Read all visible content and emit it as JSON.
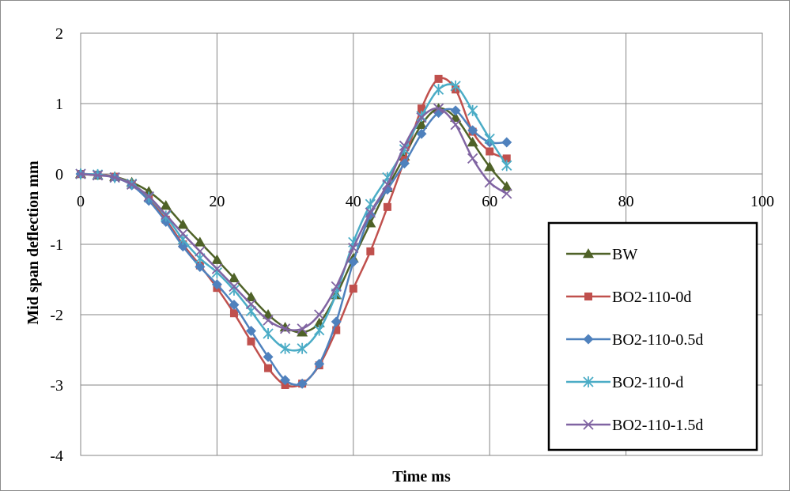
{
  "chart_data": {
    "type": "line",
    "title": "",
    "xlabel": "Time ms",
    "ylabel": "Mid span deflection mm",
    "xlim": [
      0,
      100
    ],
    "ylim": [
      -4,
      2
    ],
    "xticks": [
      0,
      20,
      40,
      60,
      80,
      100
    ],
    "yticks": [
      -4,
      -3,
      -2,
      -1,
      0,
      1,
      2
    ],
    "grid": true,
    "legend_position": "bottom-right",
    "series": [
      {
        "name": "BW",
        "color": "#4f6228",
        "marker": "triangle",
        "x": [
          0,
          2.5,
          5,
          7.5,
          10,
          12.5,
          15,
          17.5,
          20,
          22.5,
          25,
          27.5,
          30,
          32.5,
          35,
          37.5,
          40,
          42.5,
          45,
          47.5,
          50,
          52.5,
          55,
          57.5,
          60,
          62.5
        ],
        "y": [
          0,
          -0.02,
          -0.04,
          -0.12,
          -0.25,
          -0.45,
          -0.72,
          -0.97,
          -1.22,
          -1.48,
          -1.75,
          -2.0,
          -2.18,
          -2.25,
          -2.12,
          -1.72,
          -1.2,
          -0.7,
          -0.2,
          0.25,
          0.7,
          0.93,
          0.8,
          0.45,
          0.1,
          -0.18
        ]
      },
      {
        "name": "BO2-110-0d",
        "color": "#c0504d",
        "marker": "square",
        "x": [
          0,
          2.5,
          5,
          7.5,
          10,
          12.5,
          15,
          17.5,
          20,
          22.5,
          25,
          27.5,
          30,
          32.5,
          35,
          37.5,
          40,
          42.5,
          45,
          47.5,
          50,
          52.5,
          55,
          57.5,
          60,
          62.5
        ],
        "y": [
          0,
          -0.01,
          -0.04,
          -0.15,
          -0.35,
          -0.65,
          -1.0,
          -1.3,
          -1.62,
          -1.98,
          -2.38,
          -2.76,
          -3.0,
          -2.98,
          -2.72,
          -2.22,
          -1.63,
          -1.1,
          -0.47,
          0.2,
          0.93,
          1.35,
          1.2,
          0.6,
          0.32,
          0.22
        ]
      },
      {
        "name": "BO2-110-0.5d",
        "color": "#4f81bd",
        "marker": "diamond",
        "x": [
          0,
          2.5,
          5,
          7.5,
          10,
          12.5,
          15,
          17.5,
          20,
          22.5,
          25,
          27.5,
          30,
          32.5,
          35,
          37.5,
          40,
          42.5,
          45,
          47.5,
          50,
          52.5,
          55,
          57.5,
          60,
          62.5
        ],
        "y": [
          0,
          -0.01,
          -0.05,
          -0.16,
          -0.38,
          -0.68,
          -1.03,
          -1.32,
          -1.57,
          -1.86,
          -2.23,
          -2.6,
          -2.93,
          -2.98,
          -2.7,
          -2.1,
          -1.25,
          -0.58,
          -0.22,
          0.15,
          0.57,
          0.87,
          0.9,
          0.62,
          0.45,
          0.45
        ]
      },
      {
        "name": "BO2-110-d",
        "color": "#4bacc6",
        "marker": "asterisk",
        "x": [
          0,
          2.5,
          5,
          7.5,
          10,
          12.5,
          15,
          17.5,
          20,
          22.5,
          25,
          27.5,
          30,
          32.5,
          35,
          37.5,
          40,
          42.5,
          45,
          47.5,
          50,
          52.5,
          55,
          57.5,
          60,
          62.5
        ],
        "y": [
          0,
          -0.01,
          -0.05,
          -0.14,
          -0.33,
          -0.6,
          -0.93,
          -1.2,
          -1.4,
          -1.65,
          -1.95,
          -2.27,
          -2.48,
          -2.48,
          -2.22,
          -1.7,
          -0.97,
          -0.43,
          -0.05,
          0.35,
          0.82,
          1.2,
          1.25,
          0.9,
          0.5,
          0.12
        ]
      },
      {
        "name": "BO2-110-1.5d",
        "color": "#8064a2",
        "marker": "x",
        "x": [
          0,
          2.5,
          5,
          7.5,
          10,
          12.5,
          15,
          17.5,
          20,
          22.5,
          25,
          27.5,
          30,
          32.5,
          35,
          37.5,
          40,
          42.5,
          45,
          47.5,
          50,
          52.5,
          55,
          57.5,
          60,
          62.5
        ],
        "y": [
          0,
          -0.02,
          -0.05,
          -0.15,
          -0.32,
          -0.58,
          -0.85,
          -1.1,
          -1.35,
          -1.6,
          -1.85,
          -2.08,
          -2.2,
          -2.2,
          -2.0,
          -1.6,
          -1.05,
          -0.55,
          -0.15,
          0.4,
          0.8,
          0.93,
          0.7,
          0.22,
          -0.12,
          -0.28
        ]
      }
    ]
  }
}
